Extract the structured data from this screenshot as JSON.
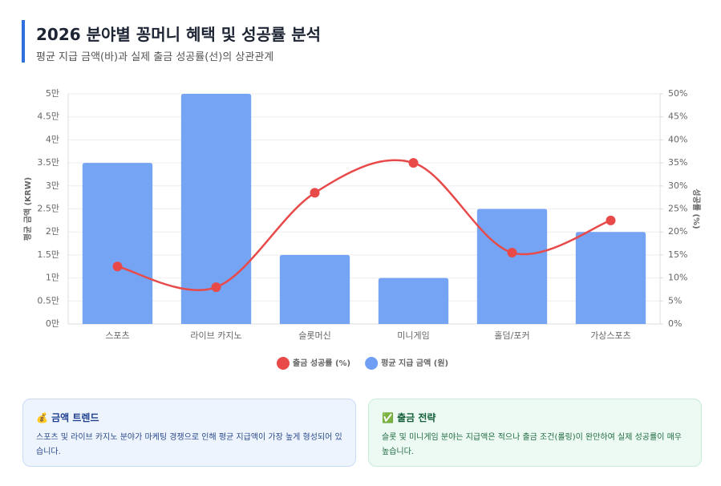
{
  "chart_data": {
    "type": "bar-line",
    "title": "2026 분야별 꽁머니 혜택 및 성공률 분석",
    "subtitle": "평균 지급 금액(바)과 실제 출금 성공률(선)의 상관관계",
    "y_label": "평균 금액 (KRW)",
    "y2_label": "성공률 (%)",
    "categories": [
      "스포츠",
      "라이브 카지노",
      "슬롯머신",
      "미니게임",
      "홀덤/포커",
      "가상스포츠"
    ],
    "series": [
      {
        "name": "출금 성공률 (%)",
        "type": "line",
        "axis": "y2",
        "color": "#e84a4a",
        "values": [
          12.5,
          8,
          28.5,
          35,
          15.5,
          22.5
        ]
      },
      {
        "name": "평균 지급 금액 (원)",
        "type": "bar",
        "color": "#6e9ff4",
        "values": [
          35000,
          50000,
          15000,
          10000,
          25000,
          20000
        ]
      }
    ],
    "ylim": [
      0,
      50000
    ],
    "yticks": [
      {
        "value": 0,
        "label": "0만"
      },
      {
        "value": 5000,
        "label": "0.5만"
      },
      {
        "value": 10000,
        "label": "1만"
      },
      {
        "value": 15000,
        "label": "1.5만"
      },
      {
        "value": 20000,
        "label": "2만"
      },
      {
        "value": 25000,
        "label": "2.5만"
      },
      {
        "value": 30000,
        "label": "3만"
      },
      {
        "value": 35000,
        "label": "3.5만"
      },
      {
        "value": 40000,
        "label": "4만"
      },
      {
        "value": 45000,
        "label": "4.5만"
      },
      {
        "value": 50000,
        "label": "5만"
      }
    ],
    "y2lim": [
      0,
      50
    ],
    "y2ticks": [
      {
        "value": 0,
        "label": "0%"
      },
      {
        "value": 5,
        "label": "5%"
      },
      {
        "value": 10,
        "label": "10%"
      },
      {
        "value": 15,
        "label": "15%"
      },
      {
        "value": 20,
        "label": "20%"
      },
      {
        "value": 25,
        "label": "25%"
      },
      {
        "value": 30,
        "label": "30%"
      },
      {
        "value": 35,
        "label": "35%"
      },
      {
        "value": 40,
        "label": "40%"
      },
      {
        "value": 45,
        "label": "45%"
      },
      {
        "value": 50,
        "label": "50%"
      }
    ],
    "grid": true
  },
  "cards": [
    {
      "title": "💰 금액 트렌드",
      "text": "스포츠 및 라이브 카지노 분야가 마케팅 경쟁으로 인해 평균 지급액이 가장 높게 형성되어 있습니다."
    },
    {
      "title": "✅ 출금 전략",
      "text": "슬롯 및 미니게임 분야는 지급액은 적으나 출금 조건(롤링)이 완만하여 실제 성공률이 매우 높습니다."
    }
  ]
}
